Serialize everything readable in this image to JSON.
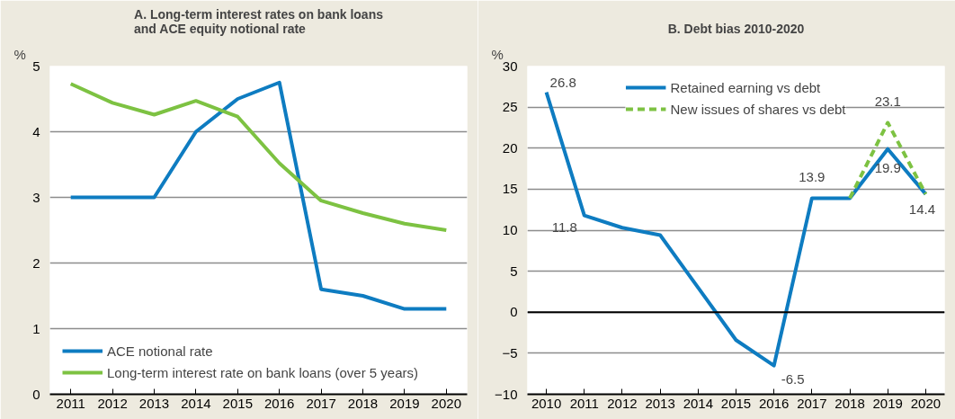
{
  "chart_data": [
    {
      "type": "line",
      "title": "A. Long-term interest rates on bank loans\nand ACE equity notional rate",
      "ylabel": "%",
      "categories": [
        "2011",
        "2012",
        "2013",
        "2014",
        "2015",
        "2016",
        "2017",
        "2018",
        "2019",
        "2020"
      ],
      "series": [
        {
          "name": "ACE notional rate",
          "color": "#0e7cc1",
          "values": [
            3,
            3,
            3,
            4,
            4.5,
            4.75,
            1.6,
            1.5,
            1.3,
            1.3
          ]
        },
        {
          "name": "Long-term interest rate on bank loans (over 5 years)",
          "color": "#7dc242",
          "values": [
            4.73,
            4.44,
            4.26,
            4.47,
            4.23,
            3.52,
            2.95,
            2.76,
            2.6,
            2.5
          ]
        }
      ],
      "ylim": [
        0,
        5
      ],
      "yticks": [
        0,
        1,
        2,
        3,
        4,
        5
      ],
      "grid": "y",
      "legend": "bottom left",
      "marker": "none",
      "line_style": "solid"
    },
    {
      "type": "line",
      "title": "B. Debt bias 2010-2020",
      "ylabel": "%",
      "categories": [
        "2010",
        "2011",
        "2012",
        "2013",
        "2014",
        "2015",
        "2016",
        "2017",
        "2018",
        "2019",
        "2020"
      ],
      "series": [
        {
          "name": "Retained earning vs debt",
          "color": "#0e7cc1",
          "values": [
            26.8,
            11.8,
            10.3,
            9.4,
            3.0,
            -3.4,
            -6.5,
            13.9,
            13.9,
            19.9,
            14.4
          ],
          "value_labels": [
            "26.8",
            "11.8",
            null,
            null,
            null,
            null,
            "-6.5",
            "13.9",
            null,
            "19.9",
            "14.4"
          ]
        },
        {
          "name": "New issues of shares vs debt",
          "color": "#7dc242",
          "line_style": "dashed",
          "values": [
            null,
            null,
            null,
            null,
            null,
            null,
            null,
            null,
            13.9,
            23.1,
            14.4
          ],
          "value_labels": [
            null,
            null,
            null,
            null,
            null,
            null,
            null,
            null,
            null,
            "23.1",
            null
          ]
        }
      ],
      "ylim": [
        -10,
        30
      ],
      "yticks": [
        -10,
        -5,
        0,
        5,
        10,
        15,
        20,
        25,
        30
      ],
      "grid": "y",
      "legend": "top",
      "marker": "none",
      "line_style": "solid"
    }
  ]
}
